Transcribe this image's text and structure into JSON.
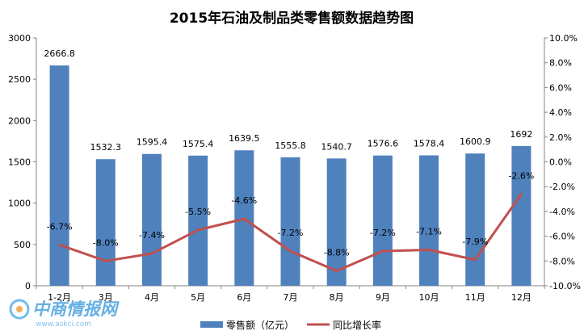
{
  "chart_data": {
    "type": "bar",
    "title": "2015年石油及制品类零售额数据趋势图",
    "categories": [
      "1-2月",
      "3月",
      "4月",
      "5月",
      "6月",
      "7月",
      "8月",
      "9月",
      "10月",
      "11月",
      "12月"
    ],
    "series": [
      {
        "name": "零售额（亿元）",
        "type": "bar",
        "axis": "left",
        "color": "#4f81bd",
        "values": [
          2666.8,
          1532.3,
          1595.4,
          1575.4,
          1639.5,
          1555.8,
          1540.7,
          1576.6,
          1578.4,
          1600.9,
          1692
        ],
        "labels": [
          "2666.8",
          "1532.3",
          "1595.4",
          "1575.4",
          "1639.5",
          "1555.8",
          "1540.7",
          "1576.6",
          "1578.4",
          "1600.9",
          "1692"
        ]
      },
      {
        "name": "同比增长率",
        "type": "line",
        "axis": "right",
        "color": "#c0504d",
        "values": [
          -6.7,
          -8.0,
          -7.4,
          -5.5,
          -4.6,
          -7.2,
          -8.8,
          -7.2,
          -7.1,
          -7.9,
          -2.6
        ],
        "labels": [
          "-6.7%",
          "-8.0%",
          "-7.4%",
          "-5.5%",
          "-4.6%",
          "-7.2%",
          "-8.8%",
          "-7.2%",
          "-7.1%",
          "-7.9%",
          "-2.6%"
        ]
      }
    ],
    "y_left": {
      "min": 0,
      "max": 3000,
      "ticks": [
        "0",
        "500",
        "1000",
        "1500",
        "2000",
        "2500",
        "3000"
      ]
    },
    "y_right": {
      "min": -10,
      "max": 10,
      "ticks": [
        "-10.0%",
        "-8.0%",
        "-6.0%",
        "-4.0%",
        "-2.0%",
        "0.0%",
        "2.0%",
        "4.0%",
        "6.0%",
        "8.0%",
        "10.0%"
      ]
    },
    "grid": false,
    "legend_position": "bottom"
  },
  "watermark": {
    "text": "中商情报网",
    "url": "www.askci.com"
  }
}
